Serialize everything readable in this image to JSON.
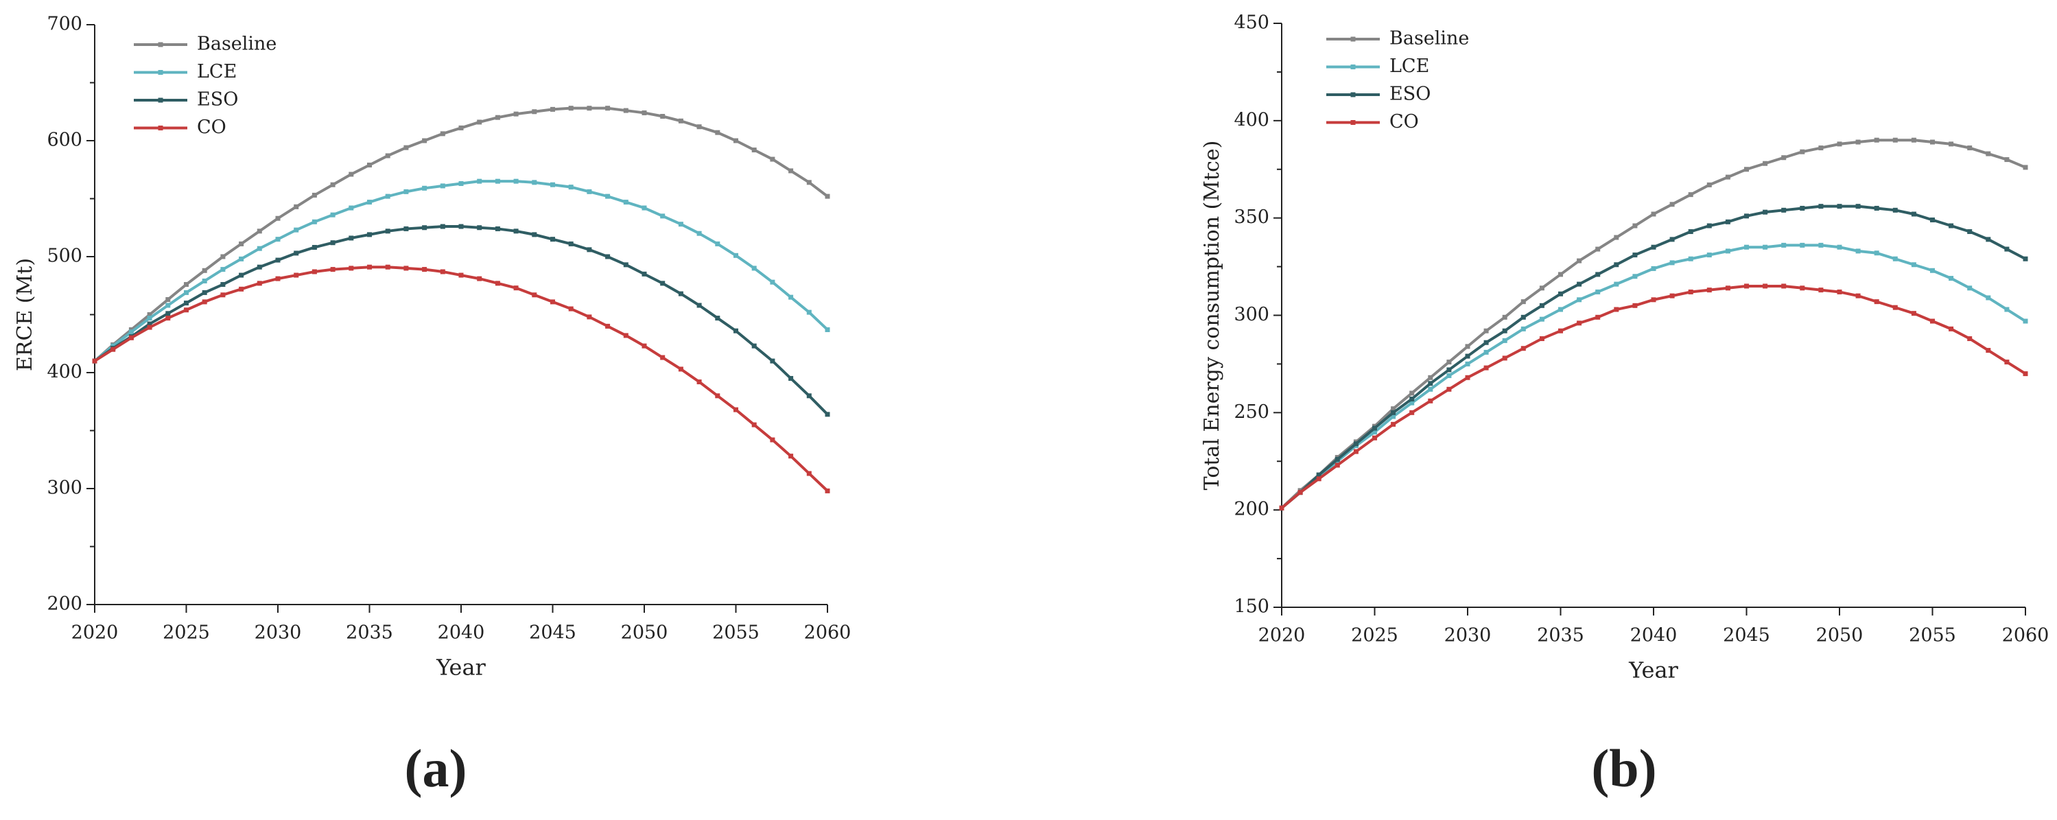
{
  "chart_data": [
    {
      "type": "line",
      "panel_label": "(a)",
      "x_label": "Year",
      "y_label": "ERCE (Mt)",
      "xlim": [
        2020,
        2060
      ],
      "xticks": [
        2020,
        2025,
        2030,
        2035,
        2040,
        2045,
        2050,
        2055,
        2060
      ],
      "ylim": [
        200,
        700
      ],
      "yticks": [
        200,
        300,
        400,
        500,
        600,
        700
      ],
      "grid": false,
      "legend": "upper left",
      "x": [
        2020,
        2021,
        2022,
        2023,
        2024,
        2025,
        2026,
        2027,
        2028,
        2029,
        2030,
        2031,
        2032,
        2033,
        2034,
        2035,
        2036,
        2037,
        2038,
        2039,
        2040,
        2041,
        2042,
        2043,
        2044,
        2045,
        2046,
        2047,
        2048,
        2049,
        2050,
        2051,
        2052,
        2053,
        2054,
        2055,
        2056,
        2057,
        2058,
        2059,
        2060
      ],
      "series": [
        {
          "name": "Baseline",
          "color": "#858585",
          "values": [
            410,
            424,
            437,
            450,
            463,
            476,
            488,
            500,
            511,
            522,
            533,
            543,
            553,
            562,
            571,
            579,
            587,
            594,
            600,
            606,
            611,
            616,
            620,
            623,
            625,
            627,
            628,
            628,
            628,
            626,
            624,
            621,
            617,
            612,
            607,
            600,
            592,
            584,
            574,
            564,
            552
          ]
        },
        {
          "name": "LCE",
          "color": "#5fb4c0",
          "values": [
            410,
            423,
            435,
            447,
            458,
            469,
            479,
            489,
            498,
            507,
            515,
            523,
            530,
            536,
            542,
            547,
            552,
            556,
            559,
            561,
            563,
            565,
            565,
            565,
            564,
            562,
            560,
            556,
            552,
            547,
            542,
            535,
            528,
            520,
            511,
            501,
            490,
            478,
            465,
            452,
            437
          ]
        },
        {
          "name": "ESO",
          "color": "#2f5d63",
          "values": [
            410,
            421,
            431,
            442,
            451,
            460,
            469,
            476,
            484,
            491,
            497,
            503,
            508,
            512,
            516,
            519,
            522,
            524,
            525,
            526,
            526,
            525,
            524,
            522,
            519,
            515,
            511,
            506,
            500,
            493,
            485,
            477,
            468,
            458,
            447,
            436,
            423,
            410,
            395,
            380,
            364
          ]
        },
        {
          "name": "CO",
          "color": "#c63c3c",
          "values": [
            410,
            420,
            430,
            439,
            447,
            454,
            461,
            467,
            472,
            477,
            481,
            484,
            487,
            489,
            490,
            491,
            491,
            490,
            489,
            487,
            484,
            481,
            477,
            473,
            467,
            461,
            455,
            448,
            440,
            432,
            423,
            413,
            403,
            392,
            380,
            368,
            355,
            342,
            328,
            313,
            298
          ]
        }
      ]
    },
    {
      "type": "line",
      "panel_label": "(b)",
      "x_label": "Year",
      "y_label": "Total Energy consumption (Mtce)",
      "xlim": [
        2020,
        2060
      ],
      "xticks": [
        2020,
        2025,
        2030,
        2035,
        2040,
        2045,
        2050,
        2055,
        2060
      ],
      "ylim": [
        150,
        450
      ],
      "yticks": [
        150,
        200,
        250,
        300,
        350,
        400,
        450
      ],
      "grid": false,
      "legend": "upper left",
      "x": [
        2020,
        2021,
        2022,
        2023,
        2024,
        2025,
        2026,
        2027,
        2028,
        2029,
        2030,
        2031,
        2032,
        2033,
        2034,
        2035,
        2036,
        2037,
        2038,
        2039,
        2040,
        2041,
        2042,
        2043,
        2044,
        2045,
        2046,
        2047,
        2048,
        2049,
        2050,
        2051,
        2052,
        2053,
        2054,
        2055,
        2056,
        2057,
        2058,
        2059,
        2060
      ],
      "series": [
        {
          "name": "Baseline",
          "color": "#858585",
          "values": [
            201,
            210,
            218,
            227,
            235,
            243,
            252,
            260,
            268,
            276,
            284,
            292,
            299,
            307,
            314,
            321,
            328,
            334,
            340,
            346,
            352,
            357,
            362,
            367,
            371,
            375,
            378,
            381,
            384,
            386,
            388,
            389,
            390,
            390,
            390,
            389,
            388,
            386,
            383,
            380,
            376
          ]
        },
        {
          "name": "LCE",
          "color": "#5fb4c0",
          "values": [
            201,
            209,
            217,
            225,
            233,
            240,
            248,
            255,
            262,
            269,
            275,
            281,
            287,
            293,
            298,
            303,
            308,
            312,
            316,
            320,
            324,
            327,
            329,
            331,
            333,
            335,
            335,
            336,
            336,
            336,
            335,
            333,
            332,
            329,
            326,
            323,
            319,
            314,
            309,
            303,
            297
          ]
        },
        {
          "name": "ESO",
          "color": "#2f5d63",
          "values": [
            201,
            209,
            218,
            226,
            234,
            242,
            250,
            257,
            265,
            272,
            279,
            286,
            292,
            299,
            305,
            311,
            316,
            321,
            326,
            331,
            335,
            339,
            343,
            346,
            348,
            351,
            353,
            354,
            355,
            356,
            356,
            356,
            355,
            354,
            352,
            349,
            346,
            343,
            339,
            334,
            329
          ]
        },
        {
          "name": "CO",
          "color": "#c63c3c",
          "values": [
            201,
            209,
            216,
            223,
            230,
            237,
            244,
            250,
            256,
            262,
            268,
            273,
            278,
            283,
            288,
            292,
            296,
            299,
            303,
            305,
            308,
            310,
            312,
            313,
            314,
            315,
            315,
            315,
            314,
            313,
            312,
            310,
            307,
            304,
            301,
            297,
            293,
            288,
            282,
            276,
            270
          ]
        }
      ]
    }
  ]
}
